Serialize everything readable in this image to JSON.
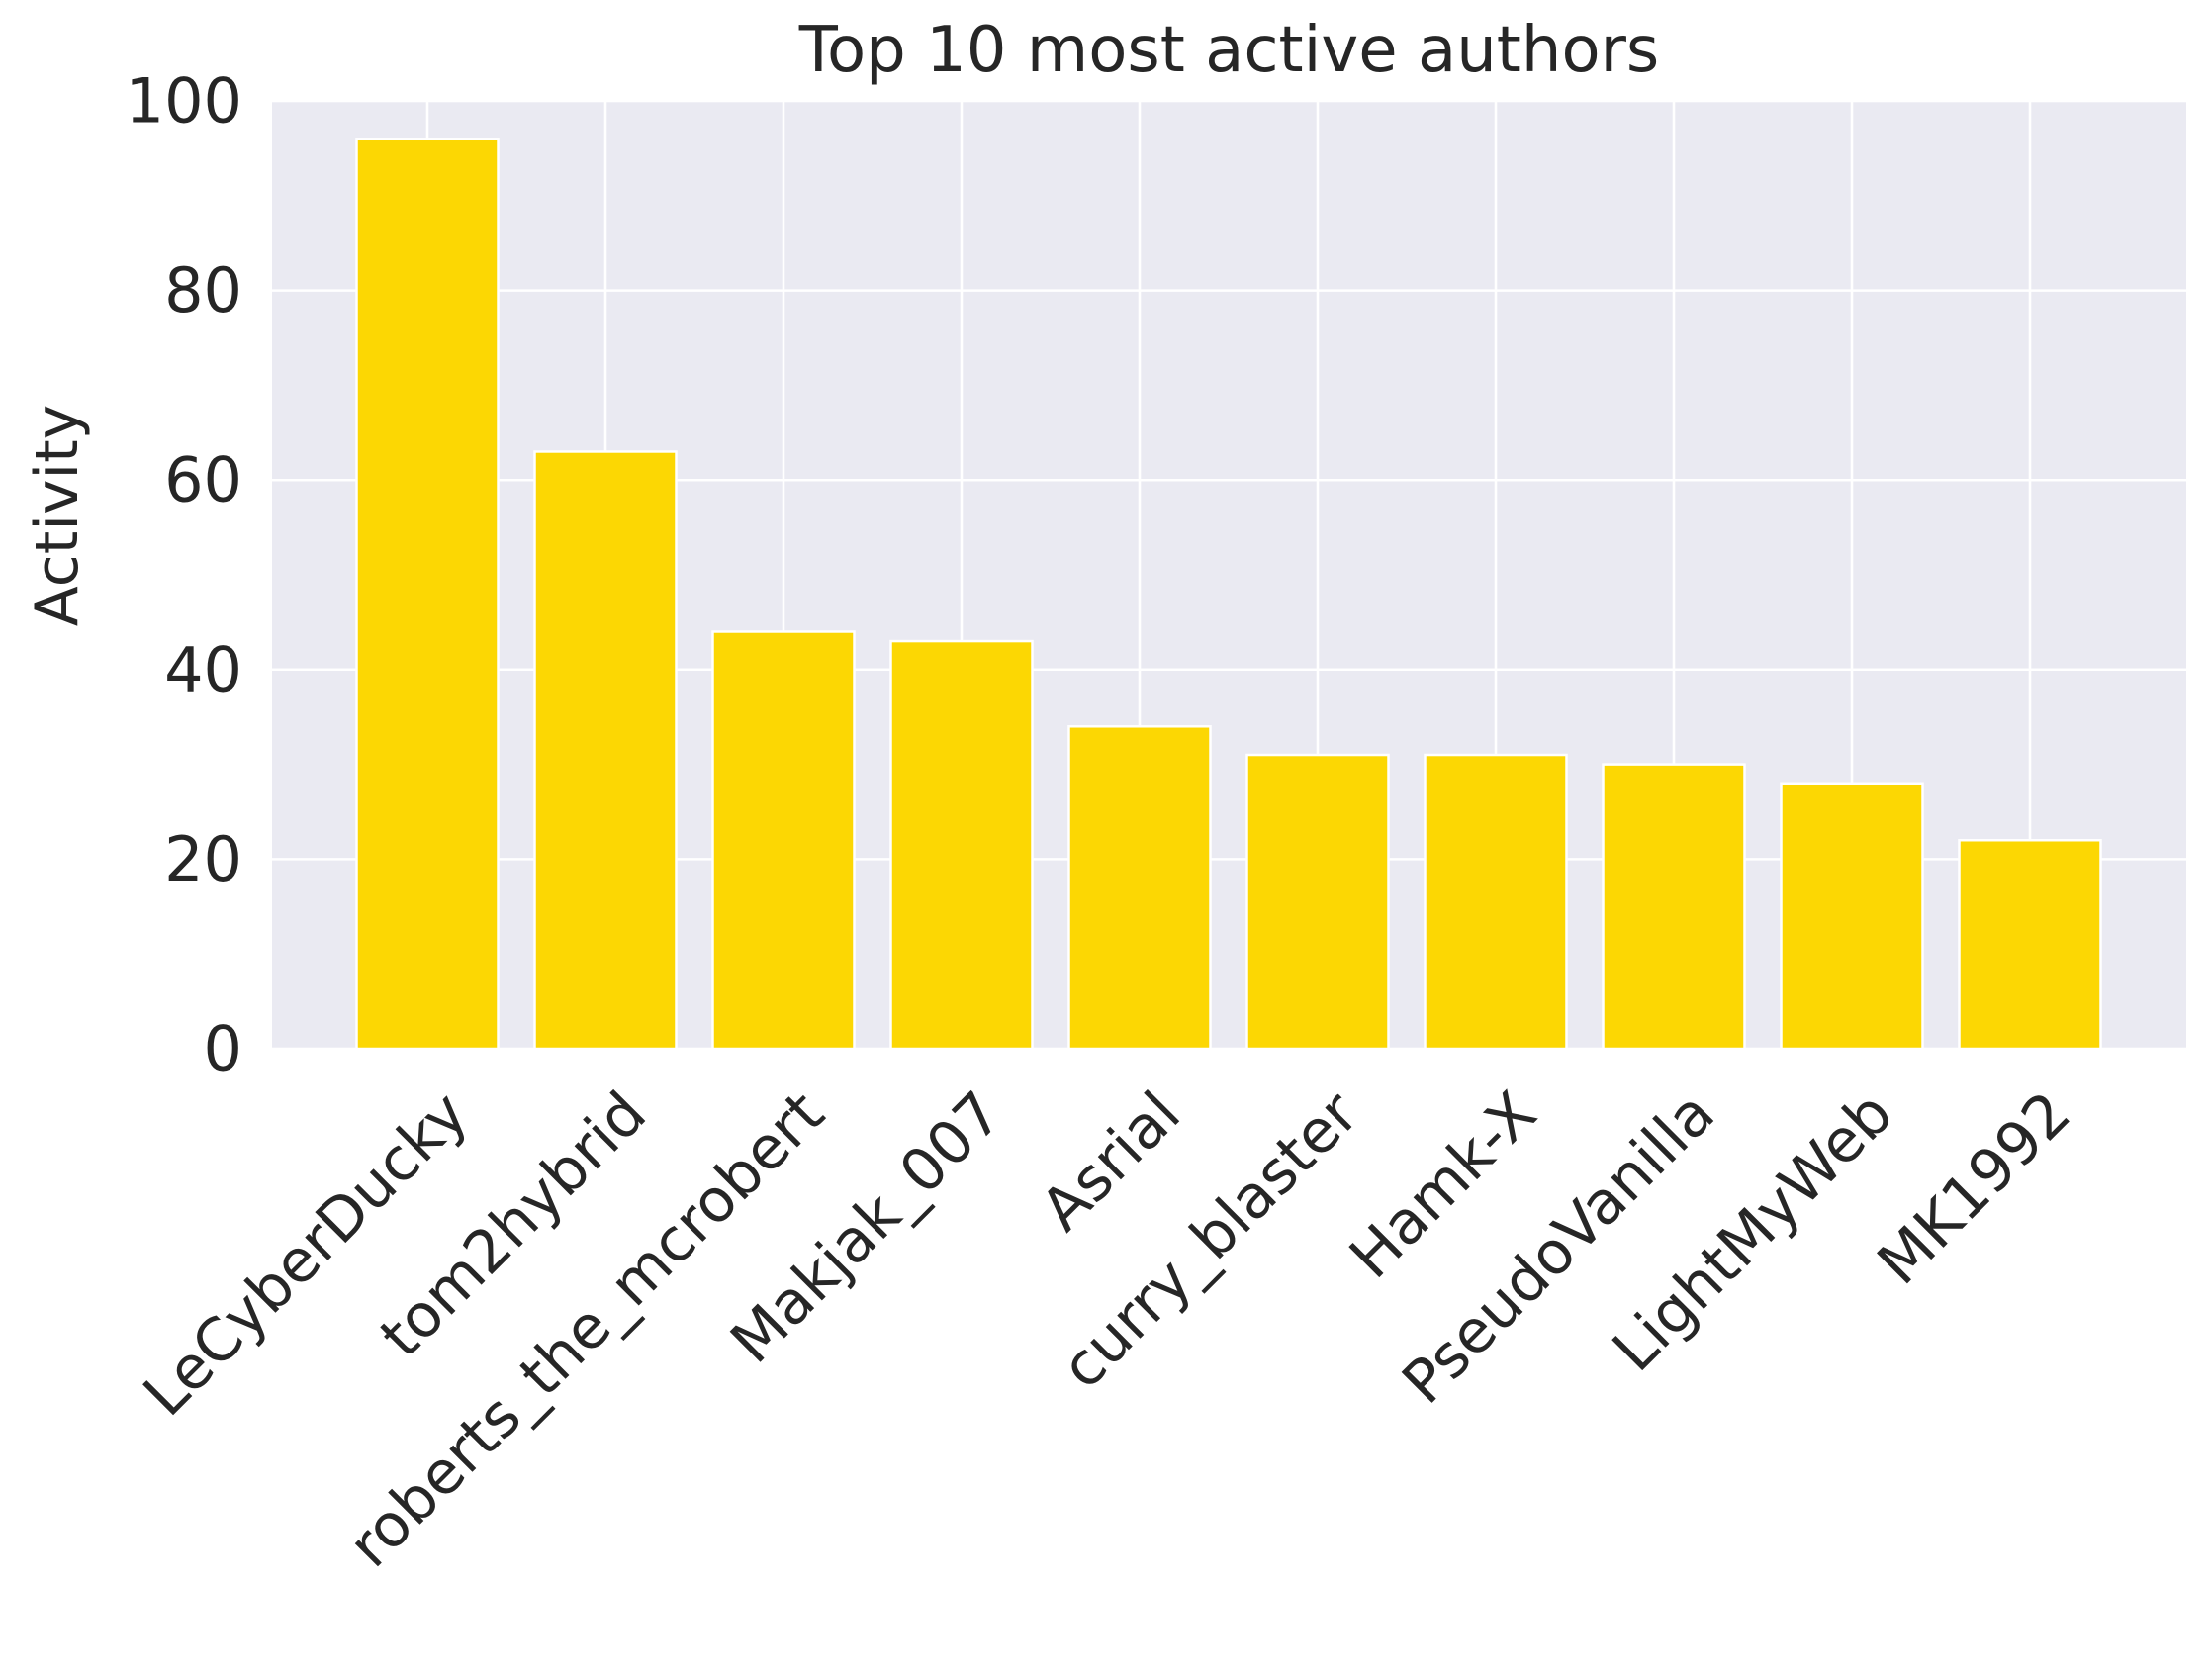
{
  "chart_data": {
    "type": "bar",
    "title": "Top 10 most active authors",
    "xlabel": "",
    "ylabel": "Activity",
    "categories": [
      "LeCyberDucky",
      "tom2hybrid",
      "roberts_the_mcrobert",
      "Makjak_007",
      "Asrial",
      "curry_blaster",
      "Hamk-X",
      "PseudoVanilla",
      "LightMyWeb",
      "MK1992"
    ],
    "values": [
      96,
      63,
      44,
      43,
      34,
      31,
      31,
      30,
      28,
      22
    ],
    "ylim": [
      0,
      100
    ],
    "yticks": [
      0,
      20,
      40,
      60,
      80,
      100
    ],
    "grid": true,
    "legend": "none",
    "colors": {
      "bar": "#FCD703",
      "background": "#EAEAF2",
      "grid": "#FFFFFF",
      "text": "#262626"
    }
  }
}
